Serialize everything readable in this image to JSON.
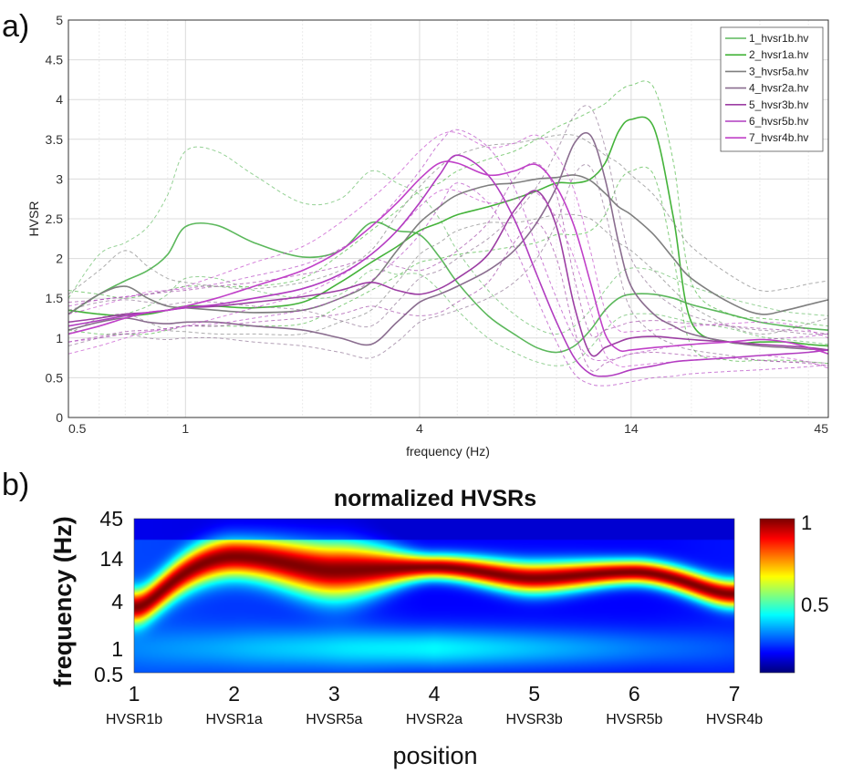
{
  "panel_labels": {
    "a": "a)",
    "b": "b)"
  },
  "chart_data": [
    {
      "type": "line",
      "xlabel": "frequency (Hz)",
      "ylabel": "HVSR",
      "xscale": "log",
      "xlim": [
        0.5,
        45
      ],
      "ylim": [
        0,
        5
      ],
      "xticks": [
        "0.5",
        "1",
        "4",
        "14",
        "45"
      ],
      "xtick_values": [
        0.5,
        1,
        4,
        14,
        45
      ],
      "yticks": [
        "0",
        "0.5",
        "1",
        "1.5",
        "2",
        "2.5",
        "3",
        "3.5",
        "4",
        "4.5",
        "5"
      ],
      "ytick_values": [
        0,
        0.5,
        1,
        1.5,
        2,
        2.5,
        3,
        3.5,
        4,
        4.5,
        5
      ],
      "grid": true,
      "legend_position": "top-right",
      "x": [
        0.5,
        0.6,
        0.7,
        0.8,
        0.9,
        1.0,
        1.2,
        1.5,
        2.0,
        2.5,
        3.0,
        3.5,
        4.0,
        4.5,
        5.0,
        6.0,
        7.0,
        8.0,
        9.0,
        10,
        11,
        12,
        13,
        14,
        16,
        18,
        20,
        25,
        30,
        35,
        40,
        45
      ],
      "series": [
        {
          "name": "1_hvsr1b.hv",
          "color": "#5cb85c",
          "values": [
            1.3,
            1.55,
            1.72,
            1.85,
            2.05,
            2.4,
            2.42,
            2.2,
            2.02,
            2.1,
            2.45,
            2.35,
            2.3,
            2.02,
            1.7,
            1.28,
            1.05,
            0.88,
            0.82,
            0.9,
            1.1,
            1.35,
            1.5,
            1.55,
            1.55,
            1.5,
            1.42,
            1.3,
            1.2,
            1.15,
            1.12,
            1.1
          ],
          "upper": [
            1.5,
            2.05,
            2.2,
            2.4,
            2.8,
            3.35,
            3.35,
            3.05,
            2.7,
            2.75,
            3.1,
            2.95,
            2.8,
            2.5,
            2.1,
            1.6,
            1.3,
            1.12,
            1.05,
            1.15,
            1.35,
            1.6,
            1.8,
            1.88,
            1.85,
            1.75,
            1.65,
            1.5,
            1.4,
            1.33,
            1.3,
            1.28
          ],
          "lower": [
            1.1,
            1.2,
            1.3,
            1.4,
            1.55,
            1.75,
            1.75,
            1.6,
            1.5,
            1.55,
            1.85,
            1.8,
            1.8,
            1.6,
            1.35,
            1.0,
            0.82,
            0.7,
            0.65,
            0.7,
            0.88,
            1.1,
            1.25,
            1.3,
            1.3,
            1.25,
            1.2,
            1.12,
            1.02,
            0.98,
            0.95,
            0.92
          ]
        },
        {
          "name": "2_hvsr1a.hv",
          "color": "#44b33a",
          "values": [
            1.35,
            1.3,
            1.28,
            1.3,
            1.35,
            1.4,
            1.4,
            1.38,
            1.45,
            1.7,
            1.95,
            2.15,
            2.35,
            2.45,
            2.55,
            2.65,
            2.75,
            2.85,
            2.95,
            2.95,
            3.0,
            3.2,
            3.6,
            3.75,
            3.65,
            2.5,
            1.2,
            0.95,
            0.95,
            0.95,
            0.92,
            0.9
          ],
          "upper": [
            1.6,
            1.55,
            1.5,
            1.55,
            1.6,
            1.65,
            1.65,
            1.65,
            1.75,
            2.05,
            2.35,
            2.6,
            2.85,
            2.95,
            3.1,
            3.25,
            3.35,
            3.5,
            3.65,
            3.75,
            3.85,
            3.95,
            4.1,
            4.18,
            4.15,
            3.2,
            1.7,
            1.3,
            1.25,
            1.22,
            1.18,
            1.15
          ],
          "lower": [
            1.1,
            1.05,
            1.05,
            1.05,
            1.1,
            1.15,
            1.15,
            1.15,
            1.18,
            1.4,
            1.6,
            1.78,
            1.95,
            2.0,
            2.05,
            2.1,
            2.15,
            2.2,
            2.3,
            2.3,
            2.35,
            2.55,
            2.95,
            3.1,
            3.05,
            2.0,
            0.9,
            0.72,
            0.72,
            0.72,
            0.7,
            0.68
          ]
        },
        {
          "name": "3_hvsr5a.hv",
          "color": "#7f7f7f",
          "values": [
            1.3,
            1.55,
            1.65,
            1.5,
            1.4,
            1.38,
            1.35,
            1.32,
            1.35,
            1.5,
            1.7,
            2.1,
            2.45,
            2.65,
            2.8,
            2.92,
            2.95,
            3.0,
            3.02,
            3.05,
            2.98,
            2.82,
            2.65,
            2.55,
            2.3,
            2.0,
            1.75,
            1.45,
            1.3,
            1.35,
            1.42,
            1.48
          ],
          "upper": [
            1.55,
            1.85,
            2.1,
            1.9,
            1.75,
            1.7,
            1.65,
            1.62,
            1.7,
            1.85,
            2.1,
            2.55,
            2.9,
            3.15,
            3.3,
            3.42,
            3.45,
            3.5,
            3.55,
            3.55,
            3.45,
            3.3,
            3.2,
            3.05,
            2.8,
            2.45,
            2.15,
            1.8,
            1.6,
            1.62,
            1.68,
            1.72
          ],
          "lower": [
            1.05,
            1.25,
            1.3,
            1.2,
            1.1,
            1.08,
            1.05,
            1.05,
            1.05,
            1.2,
            1.35,
            1.7,
            2.05,
            2.2,
            2.35,
            2.45,
            2.45,
            2.5,
            2.55,
            2.55,
            2.5,
            2.35,
            2.2,
            2.1,
            1.85,
            1.6,
            1.4,
            1.15,
            1.05,
            1.1,
            1.18,
            1.25
          ]
        },
        {
          "name": "4_hvsr2a.hv",
          "color": "#8a6d8f",
          "values": [
            1.1,
            1.2,
            1.25,
            1.2,
            1.18,
            1.2,
            1.2,
            1.15,
            1.1,
            1.0,
            0.92,
            1.2,
            1.45,
            1.55,
            1.65,
            1.85,
            2.1,
            2.45,
            2.9,
            3.45,
            3.55,
            3.0,
            2.2,
            1.65,
            1.3,
            1.15,
            1.05,
            0.95,
            0.9,
            0.88,
            0.86,
            0.85
          ],
          "upper": [
            1.35,
            1.45,
            1.48,
            1.45,
            1.42,
            1.45,
            1.45,
            1.4,
            1.35,
            1.22,
            1.15,
            1.45,
            1.75,
            1.85,
            2.0,
            2.25,
            2.55,
            2.9,
            3.35,
            3.8,
            3.9,
            3.4,
            2.6,
            2.0,
            1.6,
            1.4,
            1.28,
            1.15,
            1.1,
            1.08,
            1.05,
            1.05
          ],
          "lower": [
            0.9,
            1.0,
            1.05,
            1.0,
            0.98,
            1.0,
            1.0,
            0.95,
            0.9,
            0.82,
            0.75,
            0.95,
            1.2,
            1.28,
            1.35,
            1.5,
            1.7,
            2.0,
            2.45,
            3.05,
            3.15,
            2.6,
            1.85,
            1.35,
            1.05,
            0.92,
            0.85,
            0.78,
            0.72,
            0.7,
            0.7,
            0.68
          ]
        },
        {
          "name": "5_hvsr3b.hv",
          "color": "#9c3ea3",
          "values": [
            1.2,
            1.25,
            1.3,
            1.32,
            1.35,
            1.38,
            1.4,
            1.45,
            1.52,
            1.6,
            1.7,
            1.6,
            1.55,
            1.62,
            1.75,
            2.05,
            2.6,
            2.85,
            2.4,
            1.4,
            0.8,
            0.88,
            0.95,
            1.0,
            1.02,
            1.0,
            0.98,
            0.95,
            0.92,
            0.9,
            0.88,
            0.85
          ],
          "upper": [
            1.45,
            1.48,
            1.52,
            1.55,
            1.58,
            1.6,
            1.65,
            1.7,
            1.8,
            1.9,
            2.0,
            1.9,
            1.85,
            1.95,
            2.1,
            2.45,
            3.0,
            3.2,
            2.8,
            1.75,
            1.05,
            1.1,
            1.15,
            1.2,
            1.22,
            1.2,
            1.18,
            1.15,
            1.12,
            1.1,
            1.08,
            1.05
          ],
          "lower": [
            0.95,
            1.02,
            1.08,
            1.1,
            1.12,
            1.15,
            1.15,
            1.2,
            1.25,
            1.3,
            1.4,
            1.32,
            1.28,
            1.32,
            1.45,
            1.7,
            2.2,
            2.45,
            2.0,
            1.1,
            0.6,
            0.68,
            0.75,
            0.8,
            0.82,
            0.8,
            0.78,
            0.75,
            0.72,
            0.7,
            0.68,
            0.65
          ]
        },
        {
          "name": "6_hvsr5b.hv",
          "color": "#b13cc0",
          "values": [
            1.15,
            1.22,
            1.28,
            1.32,
            1.35,
            1.38,
            1.42,
            1.5,
            1.62,
            1.8,
            2.05,
            2.35,
            2.7,
            3.05,
            3.3,
            3.05,
            2.5,
            1.8,
            1.2,
            0.75,
            0.55,
            0.52,
            0.55,
            0.6,
            0.65,
            0.7,
            0.72,
            0.75,
            0.78,
            0.8,
            0.82,
            0.85
          ],
          "upper": [
            1.4,
            1.48,
            1.52,
            1.55,
            1.6,
            1.62,
            1.68,
            1.78,
            1.92,
            2.12,
            2.4,
            2.75,
            3.1,
            3.45,
            3.62,
            3.4,
            2.9,
            2.15,
            1.5,
            1.0,
            0.75,
            0.72,
            0.75,
            0.8,
            0.85,
            0.9,
            0.92,
            0.95,
            0.98,
            1.0,
            1.02,
            1.05
          ],
          "lower": [
            0.95,
            1.0,
            1.05,
            1.08,
            1.12,
            1.15,
            1.18,
            1.25,
            1.35,
            1.5,
            1.72,
            2.0,
            2.3,
            2.65,
            2.95,
            2.7,
            2.15,
            1.5,
            0.95,
            0.55,
            0.42,
            0.4,
            0.42,
            0.45,
            0.5,
            0.52,
            0.55,
            0.58,
            0.6,
            0.62,
            0.64,
            0.66
          ]
        },
        {
          "name": "7_hvsr4b.hv",
          "color": "#c040c8",
          "values": [
            1.05,
            1.15,
            1.25,
            1.32,
            1.35,
            1.4,
            1.5,
            1.65,
            1.85,
            2.1,
            2.4,
            2.7,
            3.0,
            3.2,
            3.2,
            3.05,
            3.1,
            3.18,
            2.9,
            2.4,
            1.7,
            1.05,
            0.85,
            0.85,
            0.88,
            0.9,
            0.92,
            0.95,
            0.98,
            0.95,
            0.88,
            0.8
          ],
          "upper": [
            1.3,
            1.4,
            1.5,
            1.58,
            1.6,
            1.65,
            1.78,
            1.95,
            2.15,
            2.45,
            2.75,
            3.05,
            3.35,
            3.55,
            3.58,
            3.4,
            3.45,
            3.55,
            3.3,
            2.85,
            2.1,
            1.35,
            1.1,
            1.08,
            1.1,
            1.12,
            1.15,
            1.18,
            1.2,
            1.18,
            1.1,
            1.0
          ],
          "lower": [
            0.8,
            0.9,
            1.0,
            1.08,
            1.1,
            1.15,
            1.25,
            1.38,
            1.55,
            1.78,
            2.05,
            2.35,
            2.65,
            2.85,
            2.85,
            2.7,
            2.75,
            2.82,
            2.5,
            2.0,
            1.35,
            0.8,
            0.65,
            0.65,
            0.68,
            0.7,
            0.72,
            0.75,
            0.78,
            0.75,
            0.7,
            0.62
          ]
        }
      ]
    },
    {
      "type": "heatmap",
      "title": "normalized HVSRs",
      "xlabel": "position",
      "ylabel": "frequency (Hz)",
      "xscale": "linear",
      "yscale": "log",
      "xlim": [
        1,
        7
      ],
      "ylim": [
        0.5,
        45
      ],
      "xticks": [
        "1",
        "2",
        "3",
        "4",
        "5",
        "6",
        "7"
      ],
      "xtick_names": [
        "HVSR1b",
        "HVSR1a",
        "HVSR5a",
        "HVSR2a",
        "HVSR3b",
        "HVSR5b",
        "HVSR4b"
      ],
      "yticks": [
        "0.5",
        "1",
        "4",
        "14",
        "45"
      ],
      "ytick_values": [
        0.5,
        1,
        4,
        14,
        45
      ],
      "colormap": "jet",
      "colorbar": {
        "ticks": [
          "1",
          "0.5"
        ],
        "tick_values": [
          1,
          0.5
        ],
        "range": [
          0.1,
          1
        ]
      },
      "peaks": [
        {
          "position": 1,
          "peak_freq": 3.4,
          "width": 0.5,
          "bg": 0.55
        },
        {
          "position": 2,
          "peak_freq": 15.0,
          "width": 0.6,
          "bg": 0.5
        },
        {
          "position": 3,
          "peak_freq": 10.0,
          "width": 0.8,
          "bg": 0.45
        },
        {
          "position": 4,
          "peak_freq": 11.0,
          "width": 0.35,
          "bg": 0.35
        },
        {
          "position": 5,
          "peak_freq": 8.0,
          "width": 0.45,
          "bg": 0.35
        },
        {
          "position": 6,
          "peak_freq": 9.5,
          "width": 0.35,
          "bg": 0.35
        },
        {
          "position": 7,
          "peak_freq": 5.0,
          "width": 0.4,
          "bg": 0.4
        }
      ]
    }
  ]
}
